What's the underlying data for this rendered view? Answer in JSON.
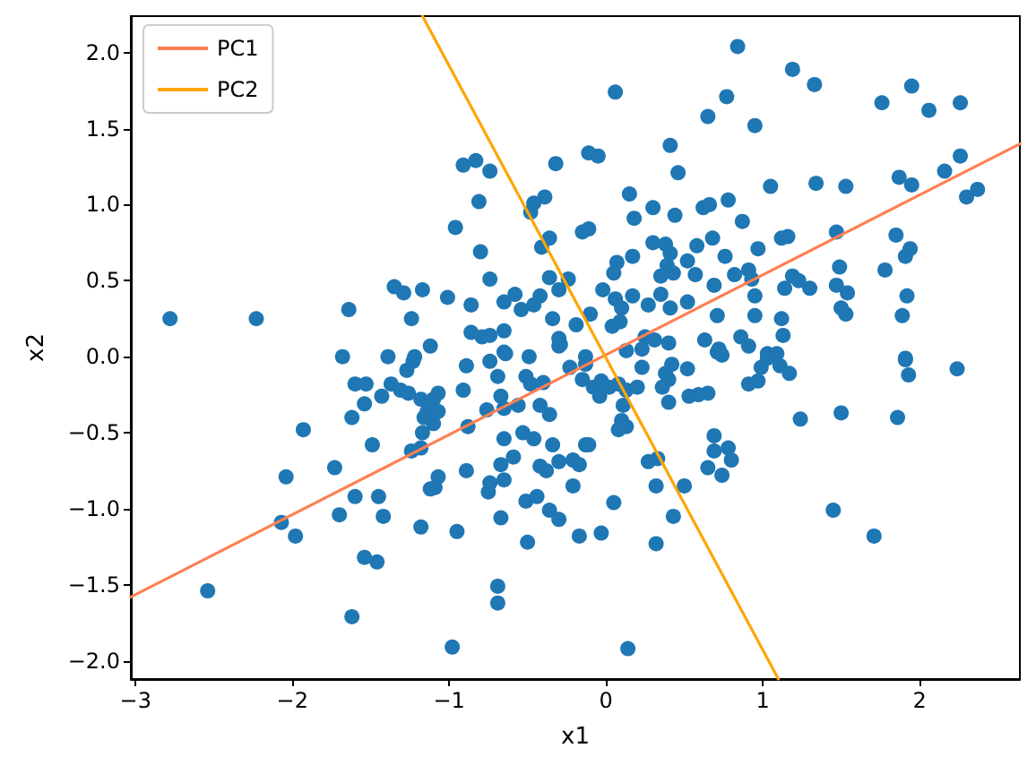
{
  "chart_data": {
    "type": "scatter",
    "xlabel": "x1",
    "ylabel": "x2",
    "xlim": [
      -3.03,
      2.64
    ],
    "ylim": [
      -2.12,
      2.24
    ],
    "xticks": [
      {
        "value": -3,
        "label": "−3"
      },
      {
        "value": -2,
        "label": "−2"
      },
      {
        "value": -1,
        "label": "−1"
      },
      0,
      1,
      2
    ],
    "yticks": [
      {
        "value": -2,
        "label": "−2.0"
      },
      {
        "value": -1.5,
        "label": "−1.5"
      },
      {
        "value": -1,
        "label": "−1.0"
      },
      {
        "value": -0.5,
        "label": "−0.5"
      },
      {
        "value": 0,
        "label": "0.0"
      },
      {
        "value": 0.5,
        "label": "0.5"
      },
      {
        "value": 1,
        "label": "1.0"
      },
      {
        "value": 1.5,
        "label": "1.5"
      },
      {
        "value": 2,
        "label": "2.0"
      }
    ],
    "legend": "top left",
    "marker": "circle",
    "series": [
      {
        "color": "#1f77b4",
        "x": [
          -2.78,
          -2.23,
          -1.64,
          -1.35,
          -1.29,
          -1.17,
          -1.24,
          -1.68,
          -1.39,
          -1.22,
          -1.12,
          0.06,
          0.65,
          0.77,
          0.84,
          0.41,
          0.46,
          -0.11,
          -0.05,
          -0.32,
          -0.91,
          -0.83,
          -0.74,
          -0.81,
          -0.46,
          -0.39,
          -0.48,
          0.15,
          0.18,
          0.3,
          0.44,
          0.62,
          0.66,
          0.78,
          -0.96,
          -0.8,
          -0.74,
          -0.36,
          -0.41,
          -0.15,
          -0.11,
          0.07,
          0.05,
          0.17,
          0.3,
          0.38,
          0.41,
          0.39,
          0.35,
          0.43,
          0.52,
          0.58,
          0.68,
          0.76,
          0.69,
          0.57,
          -1.01,
          -0.86,
          -0.65,
          -0.58,
          -0.54,
          -0.46,
          -0.42,
          -0.36,
          -0.3,
          -0.24,
          -0.34,
          -0.02,
          0.06,
          0.1,
          0.17,
          0.27,
          0.35,
          0.41,
          0.52,
          0.71,
          -0.1,
          -0.19,
          0.04,
          0.09,
          -0.86,
          -0.79,
          -0.74,
          -0.65,
          -0.3,
          -0.29,
          0.25,
          0.31,
          0.4,
          0.63,
          0.72,
          -0.65,
          -0.13,
          1.19,
          1.33,
          0.95,
          1.76,
          1.95,
          2.06,
          2.26,
          2.26,
          2.16,
          1.87,
          1.95,
          2.3,
          2.37,
          1.05,
          1.34,
          1.53,
          0.87,
          1.47,
          1.85,
          1.12,
          1.16,
          0.97,
          1.94,
          1.91,
          1.49,
          1.78,
          0.82,
          0.91,
          0.93,
          0.95,
          1.19,
          1.23,
          1.14,
          1.3,
          1.47,
          1.54,
          1.5,
          1.53,
          1.92,
          1.89,
          0.95,
          1.12,
          1.13,
          0.86,
          0.91,
          1.03,
          1.09,
          1.91,
          0.71,
          -1.23,
          -1.27,
          -1.6,
          -1.53,
          -1.37,
          -1.31,
          -1.26,
          -1.43,
          -1.54,
          -1.62,
          -1.18,
          -1.16,
          -1.17,
          -1.93,
          -1.49,
          -1.73,
          -2.04,
          -1.6,
          -1.45,
          -1.7,
          -1.42,
          -2.07,
          -1.98,
          -1.18,
          -1.12,
          -1.54,
          -1.46,
          -2.54,
          -1.62,
          -1.18,
          -0.89,
          -0.74,
          -0.64,
          -0.49,
          -0.3,
          -0.51,
          -0.48,
          -0.4,
          -0.69,
          -0.91,
          -1.1,
          -1.07,
          -1.14,
          -1.07,
          -1.1,
          -1.24,
          -0.76,
          -0.67,
          -0.65,
          -0.88,
          -0.56,
          -0.42,
          -0.36,
          -0.53,
          -0.46,
          -0.34,
          -0.65,
          -0.59,
          -0.67,
          -0.65,
          -0.74,
          -0.75,
          -0.89,
          -1.07,
          -1.09,
          -0.95,
          -0.51,
          -0.44,
          -0.36,
          -0.3,
          -0.67,
          -0.5,
          -0.42,
          -0.38,
          -0.3,
          -0.21,
          -0.17,
          -0.13,
          -0.11,
          -0.21,
          -0.17,
          -0.03,
          0.05,
          -0.69,
          -0.69,
          -0.98,
          0.14,
          -0.13,
          -0.23,
          -0.15,
          -0.08,
          -0.04,
          -0.03,
          0.02,
          0.08,
          0.13,
          0.11,
          0.1,
          0.13,
          0.08,
          0.2,
          0.23,
          0.13,
          0.23,
          0.27,
          0.33,
          0.32,
          0.5,
          0.43,
          0.32,
          0.4,
          0.4,
          0.38,
          0.36,
          0.42,
          0.52,
          0.53,
          0.59,
          0.65,
          0.69,
          0.69,
          0.78,
          0.65,
          0.74,
          0.74,
          0.99,
          1.03,
          1.11,
          1.17,
          0.91,
          0.97,
          1.91,
          1.93,
          2.24,
          1.24,
          1.5,
          1.86,
          0.8,
          1.45,
          1.71
        ],
        "values": [
          0.25,
          0.25,
          0.31,
          0.46,
          0.42,
          0.44,
          0.25,
          0.0,
          0.0,
          0.0,
          0.07,
          1.74,
          1.58,
          1.71,
          2.04,
          1.39,
          1.21,
          1.34,
          1.32,
          1.27,
          1.26,
          1.29,
          1.22,
          1.02,
          1.01,
          1.05,
          0.95,
          1.07,
          0.91,
          0.98,
          0.93,
          0.98,
          1.0,
          1.03,
          0.85,
          0.69,
          0.51,
          0.78,
          0.72,
          0.82,
          0.84,
          0.62,
          0.55,
          0.66,
          0.75,
          0.74,
          0.68,
          0.6,
          0.53,
          0.55,
          0.63,
          0.73,
          0.78,
          0.66,
          0.47,
          0.54,
          0.39,
          0.34,
          0.36,
          0.41,
          0.31,
          0.34,
          0.4,
          0.52,
          0.44,
          0.51,
          0.25,
          0.44,
          0.38,
          0.32,
          0.4,
          0.34,
          0.41,
          0.32,
          0.36,
          0.27,
          0.28,
          0.21,
          0.2,
          0.23,
          0.16,
          0.13,
          0.14,
          0.17,
          0.12,
          0.08,
          0.13,
          0.11,
          0.09,
          0.11,
          0.05,
          0.03,
          0.0,
          1.89,
          1.79,
          1.52,
          1.67,
          1.78,
          1.62,
          1.67,
          1.32,
          1.22,
          1.18,
          1.13,
          1.05,
          1.1,
          1.12,
          1.14,
          1.12,
          0.89,
          0.82,
          0.8,
          0.78,
          0.79,
          0.71,
          0.71,
          0.66,
          0.59,
          0.57,
          0.54,
          0.57,
          0.51,
          0.4,
          0.53,
          0.5,
          0.45,
          0.45,
          0.47,
          0.42,
          0.32,
          0.28,
          0.4,
          0.27,
          0.27,
          0.25,
          0.14,
          0.13,
          0.07,
          0.02,
          0.02,
          -0.01,
          0.03,
          -0.03,
          -0.09,
          -0.18,
          -0.18,
          -0.18,
          -0.22,
          -0.24,
          -0.26,
          -0.31,
          -0.4,
          -0.28,
          -0.4,
          -0.5,
          -0.48,
          -0.58,
          -0.73,
          -0.79,
          -0.92,
          -0.92,
          -1.04,
          -1.05,
          -1.09,
          -1.18,
          -1.12,
          -0.87,
          -1.32,
          -1.35,
          -1.54,
          -1.71,
          -0.6,
          -0.06,
          -0.03,
          0.02,
          0.0,
          0.07,
          -0.13,
          -0.18,
          -0.17,
          -0.13,
          -0.22,
          -0.28,
          -0.24,
          -0.36,
          -0.36,
          -0.44,
          -0.62,
          -0.35,
          -0.26,
          -0.34,
          -0.46,
          -0.32,
          -0.32,
          -0.38,
          -0.5,
          -0.54,
          -0.58,
          -0.54,
          -0.66,
          -0.71,
          -0.81,
          -0.83,
          -0.89,
          -0.75,
          -0.79,
          -0.86,
          -1.15,
          -0.95,
          -0.92,
          -1.01,
          -1.07,
          -1.06,
          -1.22,
          -0.72,
          -0.75,
          -0.69,
          -0.68,
          -0.71,
          -0.58,
          -0.58,
          -0.85,
          -1.18,
          -1.16,
          -0.96,
          -1.51,
          -1.62,
          -1.91,
          -1.92,
          -0.05,
          -0.07,
          -0.15,
          -0.2,
          -0.26,
          -0.16,
          -0.2,
          -0.18,
          -0.22,
          -0.32,
          -0.42,
          -0.46,
          -0.48,
          -0.2,
          -0.07,
          0.04,
          0.05,
          -0.69,
          -0.67,
          -0.85,
          -0.85,
          -1.05,
          -1.23,
          -0.3,
          -0.15,
          -0.11,
          -0.2,
          -0.05,
          -0.08,
          -0.26,
          -0.25,
          -0.24,
          -0.52,
          -0.62,
          -0.6,
          -0.73,
          -0.78,
          0.01,
          -0.07,
          -0.01,
          -0.06,
          -0.11,
          -0.18,
          -0.16,
          -0.02,
          -0.12,
          -0.08,
          -0.41,
          -0.37,
          -0.4,
          -0.68,
          -1.01,
          -1.18
        ]
      },
      {
        "name": "PC1",
        "type": "line",
        "marker": "none",
        "color": "#ff7f50",
        "x": [
          -3.03,
          2.64
        ],
        "values": [
          -1.58,
          1.4
        ]
      },
      {
        "name": "PC2",
        "type": "line",
        "marker": "none",
        "color": "#ffa500",
        "x": [
          -1.17,
          1.1
        ],
        "values": [
          2.24,
          -2.12
        ]
      }
    ]
  }
}
